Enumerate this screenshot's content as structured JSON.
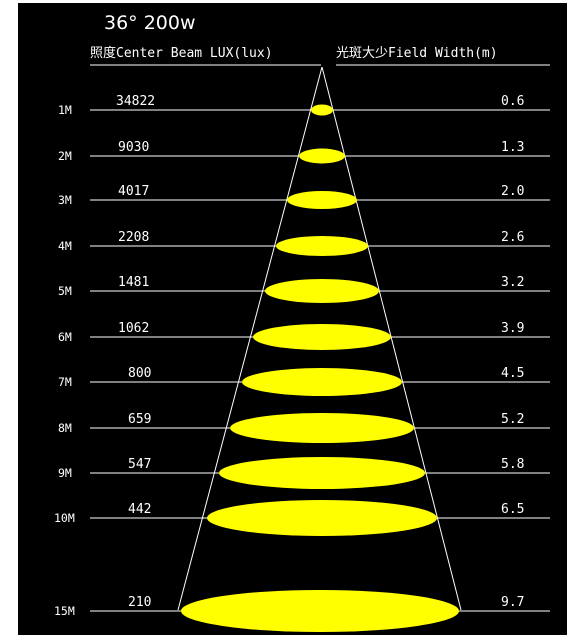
{
  "title": "36° 200w",
  "header": {
    "lux_label": "照度Center Beam LUX(lux)",
    "width_label": "光斑大少Field Width(m)"
  },
  "beam_color": "#ffff00",
  "line_color": "#ffffff",
  "background": "#000000",
  "rows": [
    {
      "distance": "1M",
      "lux": "34822",
      "width": "0.6"
    },
    {
      "distance": "2M",
      "lux": "9030",
      "width": "1.3"
    },
    {
      "distance": "3M",
      "lux": "4017",
      "width": "2.0"
    },
    {
      "distance": "4M",
      "lux": "2208",
      "width": "2.6"
    },
    {
      "distance": "5M",
      "lux": "1481",
      "width": "3.2"
    },
    {
      "distance": "6M",
      "lux": "1062",
      "width": "3.9"
    },
    {
      "distance": "7M",
      "lux": "800",
      "width": "4.5"
    },
    {
      "distance": "8M",
      "lux": "659",
      "width": "5.2"
    },
    {
      "distance": "9M",
      "lux": "547",
      "width": "5.8"
    },
    {
      "distance": "10M",
      "lux": "442",
      "width": "6.5"
    },
    {
      "distance": "15M",
      "lux": "210",
      "width": "9.7"
    }
  ]
}
